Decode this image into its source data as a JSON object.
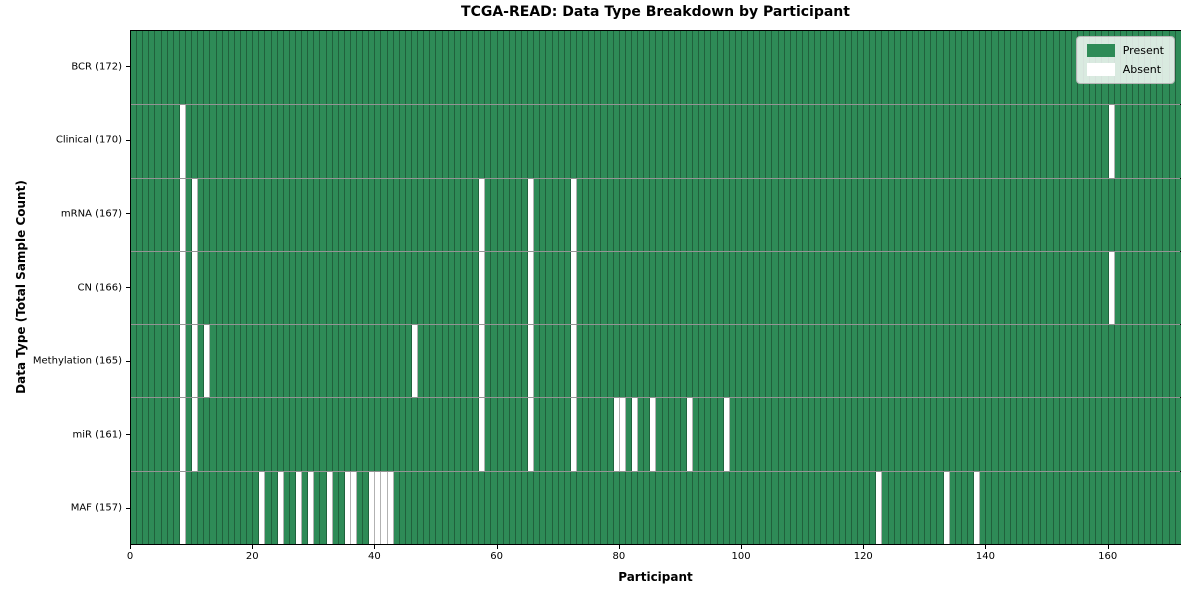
{
  "chart_data": {
    "type": "heatmap",
    "title": "TCGA-READ: Data Type Breakdown by Participant",
    "xlabel": "Participant",
    "ylabel": "Data Type (Total Sample Count)",
    "n_participants": 172,
    "x_ticks": [
      0,
      20,
      40,
      60,
      80,
      100,
      120,
      140,
      160
    ],
    "grid": true,
    "legend": {
      "position": "upper right",
      "entries": [
        {
          "label": "Present",
          "color": "#2e8b57"
        },
        {
          "label": "Absent",
          "color": "#ffffff"
        }
      ]
    },
    "rows": [
      {
        "label": "BCR (172)",
        "data_type": "BCR",
        "total_sample_count": 172,
        "absent_participants": []
      },
      {
        "label": "Clinical (170)",
        "data_type": "Clinical",
        "total_sample_count": 170,
        "absent_participants": [
          8,
          160
        ]
      },
      {
        "label": "mRNA (167)",
        "data_type": "mRNA",
        "total_sample_count": 167,
        "absent_participants": [
          8,
          10,
          57,
          65,
          72
        ]
      },
      {
        "label": "CN (166)",
        "data_type": "CN",
        "total_sample_count": 166,
        "absent_participants": [
          8,
          10,
          57,
          65,
          72,
          160
        ]
      },
      {
        "label": "Methylation (165)",
        "data_type": "Methylation",
        "total_sample_count": 165,
        "absent_participants": [
          8,
          10,
          12,
          46,
          57,
          65,
          72
        ]
      },
      {
        "label": "miR (161)",
        "data_type": "miR",
        "total_sample_count": 161,
        "absent_participants": [
          8,
          10,
          57,
          65,
          72,
          79,
          80,
          82,
          85,
          91,
          97
        ]
      },
      {
        "label": "MAF (157)",
        "data_type": "MAF",
        "total_sample_count": 157,
        "absent_participants": [
          8,
          21,
          24,
          27,
          29,
          32,
          35,
          36,
          39,
          40,
          41,
          42,
          122,
          133,
          138
        ]
      }
    ],
    "colors": {
      "present": "#2e8b57",
      "absent": "#ffffff",
      "grid_line": "rgba(0,0,0,0.30)",
      "axis": "#000000"
    }
  }
}
